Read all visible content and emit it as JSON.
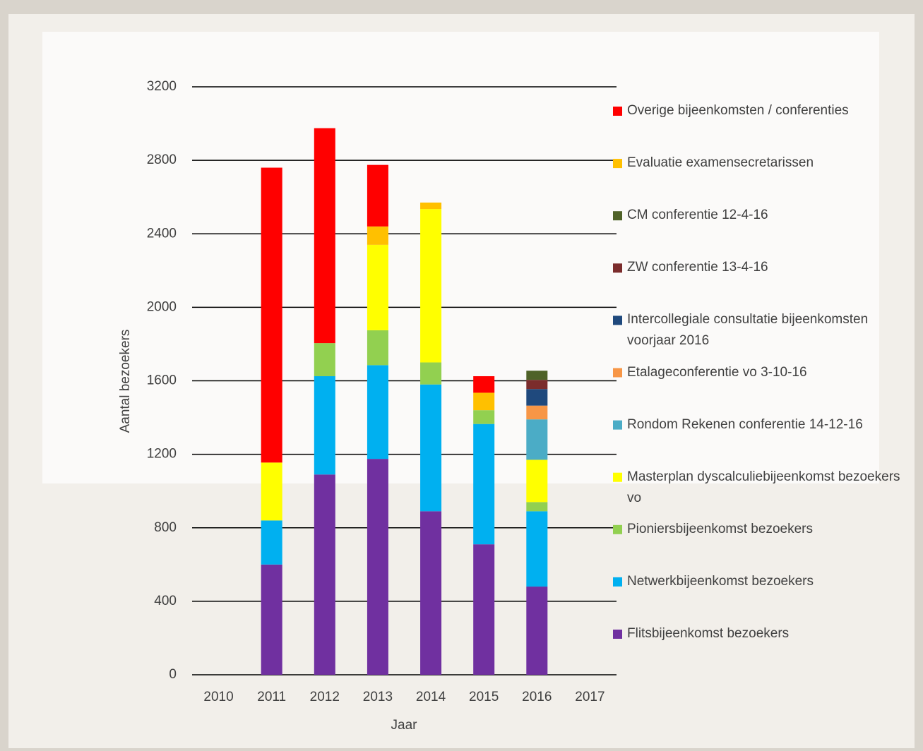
{
  "chart_data": {
    "type": "stacked_bar",
    "x_label": "Jaar",
    "y_label": "Aantal bezoekers",
    "categories": [
      "2010",
      "2011",
      "2012",
      "2013",
      "2014",
      "2015",
      "2016",
      "2017"
    ],
    "ylim": [
      0,
      3200
    ],
    "yticks": [
      0,
      400,
      800,
      1200,
      1600,
      2000,
      2400,
      2800,
      3200
    ],
    "grid": true,
    "legend": "right",
    "series": [
      {
        "name": "Flitsbijeenkomst bezoekers",
        "color": "#7030a0",
        "values": [
          null,
          600,
          1090,
          1175,
          890,
          710,
          480,
          null
        ]
      },
      {
        "name": "Netwerkbijeenkomst bezoekers",
        "color": "#00b0f0",
        "values": [
          null,
          240,
          535,
          510,
          690,
          655,
          410,
          null
        ]
      },
      {
        "name": "Pioniersbijeenkomst bezoekers",
        "color": "#92d050",
        "values": [
          null,
          null,
          180,
          190,
          120,
          75,
          50,
          null
        ]
      },
      {
        "name": "Masterplan dyscalculiebijeenkomst bezoekers vo",
        "color": "#ffff00",
        "values": [
          null,
          315,
          null,
          465,
          835,
          null,
          230,
          null
        ]
      },
      {
        "name": "Rondom Rekenen conferentie 14-12-16",
        "color": "#4bacc6",
        "values": [
          null,
          null,
          null,
          null,
          null,
          null,
          220,
          null
        ]
      },
      {
        "name": "Etalageconferentie vo 3-10-16",
        "color": "#f79646",
        "values": [
          null,
          null,
          null,
          null,
          null,
          null,
          75,
          null
        ]
      },
      {
        "name": "Intercollegiale consultatie bijeenkomsten voorjaar 2016",
        "color": "#1f497d",
        "values": [
          null,
          null,
          null,
          null,
          null,
          null,
          90,
          null
        ]
      },
      {
        "name": "ZW conferentie 13-4-16",
        "color": "#7b2c2c",
        "values": [
          null,
          null,
          null,
          null,
          null,
          null,
          50,
          null
        ]
      },
      {
        "name": "CM conferentie 12-4-16",
        "color": "#4f6228",
        "values": [
          null,
          null,
          null,
          null,
          null,
          null,
          50,
          null
        ]
      },
      {
        "name": "Evaluatie examensecretarissen",
        "color": "#ffc000",
        "values": [
          null,
          null,
          null,
          100,
          35,
          95,
          null,
          null
        ]
      },
      {
        "name": "Overige bijeenkomsten / conferenties",
        "color": "#ff0000",
        "values": [
          null,
          1605,
          1170,
          335,
          null,
          90,
          null,
          null
        ]
      }
    ]
  }
}
